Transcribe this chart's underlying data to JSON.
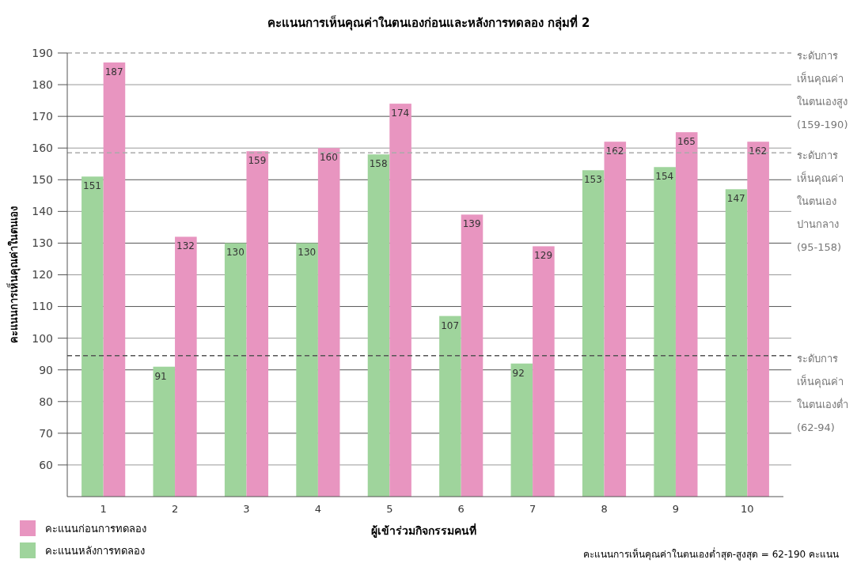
{
  "chart_data": {
    "type": "bar",
    "title": "คะแนนการเห็นคุณค่าในตนเองก่อนและหลังการทดลอง กลุ่มที่ 2",
    "xlabel": "ผู้เข้าร่วมกิจกรรมคนที่",
    "ylabel": "คะแนนการเห็นคุณค่าในตนเอง",
    "categories": [
      "1",
      "2",
      "3",
      "4",
      "5",
      "6",
      "7",
      "8",
      "9",
      "10"
    ],
    "series": [
      {
        "name": "คะแนนหลังการทดลอง",
        "color": "#9fd49c",
        "values": [
          151,
          91,
          130,
          130,
          158,
          107,
          92,
          153,
          154,
          147
        ]
      },
      {
        "name": "คะแนนก่อนการทดลอง",
        "color": "#e895c0",
        "values": [
          187,
          132,
          159,
          160,
          174,
          139,
          129,
          162,
          165,
          162
        ]
      }
    ],
    "ylim": [
      50,
      190
    ],
    "yticks": [
      60,
      70,
      80,
      90,
      100,
      110,
      120,
      130,
      140,
      150,
      160,
      170,
      180,
      190
    ],
    "grid": "y",
    "legend": "bottom left",
    "data_labels": true,
    "ref_lines": [
      {
        "axis": "y",
        "value": 190,
        "label": "ระดับการ\nเห็นคุณค่า\nในตนเองสูง\n(159-190)",
        "color": "#aaaaaa",
        "line_style": "dashed"
      },
      {
        "axis": "y",
        "value": 158.5,
        "label": "ระดับการ\nเห็นคุณค่า\nในตนเอง\nปานกลาง\n(95-158)",
        "color": "#aaaaaa",
        "line_style": "dashed"
      },
      {
        "axis": "y",
        "value": 94.5,
        "label": "ระดับการ\nเห็นคุณค่า\nในตนเองต่ำ\n(62-94)",
        "color": "#555555",
        "line_style": "dashed"
      }
    ],
    "annotations": [
      "คะแนนการเห็นคุณค่าในตนเองต่ำสุด-สูงสุด = 62-190 คะแนน"
    ]
  }
}
